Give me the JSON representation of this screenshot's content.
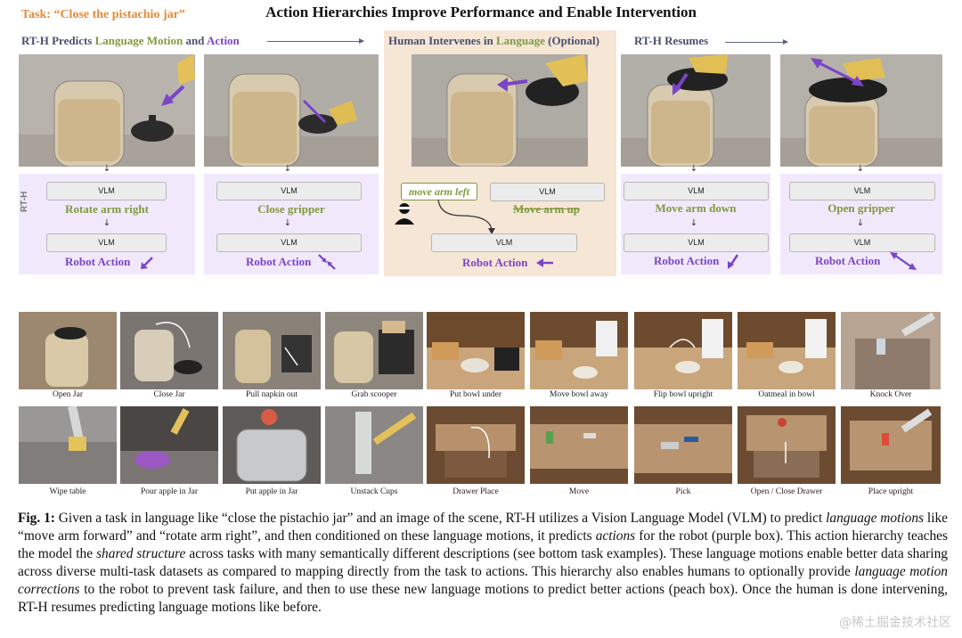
{
  "header": {
    "task_label": "Task: “Close the pistachio jar”",
    "title": "Action Hierarchies Improve Performance and Enable Intervention"
  },
  "sections": {
    "predict": {
      "prefix": "RT-H Predicts ",
      "language_motion": "Language Motion",
      "and": " and ",
      "action": "Action"
    },
    "intervene": {
      "prefix": "Human Intervenes in ",
      "language": "Language",
      "suffix": " (Optional)"
    },
    "resume": {
      "label": "RT-H Resumes"
    }
  },
  "rth_label": "RT-H",
  "vlm_label": "VLM",
  "down_arrow": "↓",
  "robot_action_label": "Robot Action",
  "steps": [
    {
      "motion": "Rotate arm right",
      "arrow_icon": "arrow-down-left-icon"
    },
    {
      "motion": "Close gripper",
      "arrow_icon": "arrows-converge-icon"
    },
    {
      "motion": "Move arm up",
      "correction": "move arm left",
      "arrow_icon": "arrow-left-icon"
    },
    {
      "motion": "Move arm down",
      "arrow_icon": "arrow-down-left-icon"
    },
    {
      "motion": "Open gripper",
      "arrow_icon": "arrows-diverge-icon"
    }
  ],
  "tasks_row1": [
    "Open Jar",
    "Close Jar",
    "Pull napkin out",
    "Grab scooper",
    "Put bowl under",
    "Move bowl away",
    "Flip bowl upright",
    "Oatmeal in bowl",
    "Knock Over"
  ],
  "tasks_row2": [
    "Wipe table",
    "Pour apple in Jar",
    "Put apple in Jar",
    "Unstack Cups",
    "Drawer Place",
    "Move",
    "Pick",
    "Open / Close Drawer",
    "Place upright"
  ],
  "caption": {
    "label": "Fig. 1:",
    "t1": " Given a task in language like “close the pistachio jar” and an image of the scene, RT-H utilizes a Vision Language Model (VLM) to predict ",
    "i1": "language motions",
    "t2": " like “move arm forward” and “rotate arm right”, and then conditioned on these language motions, it predicts ",
    "i2": "actions",
    "t3": " for the robot (purple box). This action hierarchy teaches the model the ",
    "i3": "shared structure",
    "t4": " across tasks with many semantically different descriptions (see bottom task examples). These language motions enable better data sharing across diverse multi-task datasets as compared to mapping directly from the task to actions. This hierarchy also enables humans to optionally provide ",
    "i4": "language motion corrections",
    "t5": " to the robot to prevent task failure, and then to use these new language motions to predict better actions (peach box). Once the human is done intervening, RT-H resumes predicting language motions like before."
  },
  "watermark": "@稀土掘金技术社区",
  "colors": {
    "task_orange": "#e38a3b",
    "motion_green": "#7f9a3d",
    "action_purple": "#7a45c6",
    "peach": "#f6e6d6",
    "lavender": "#f1e9fb"
  }
}
